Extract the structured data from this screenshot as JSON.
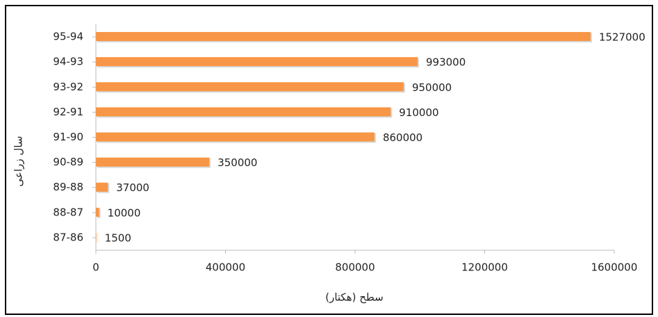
{
  "chart_data": {
    "type": "barh",
    "x_label": "سطح (هکتار)",
    "y_label": "سال زراعی",
    "categories": [
      "95-94",
      "94-93",
      "93-92",
      "92-91",
      "91-90",
      "90-89",
      "89-88",
      "88-87",
      "87-86"
    ],
    "values": [
      1527000,
      993000,
      950000,
      910000,
      860000,
      350000,
      37000,
      10000,
      1500
    ],
    "color": "#f79646",
    "xlim": [
      0,
      1600000
    ],
    "xticks": [
      0,
      400000,
      800000,
      1200000,
      1600000
    ],
    "grid": false
  }
}
